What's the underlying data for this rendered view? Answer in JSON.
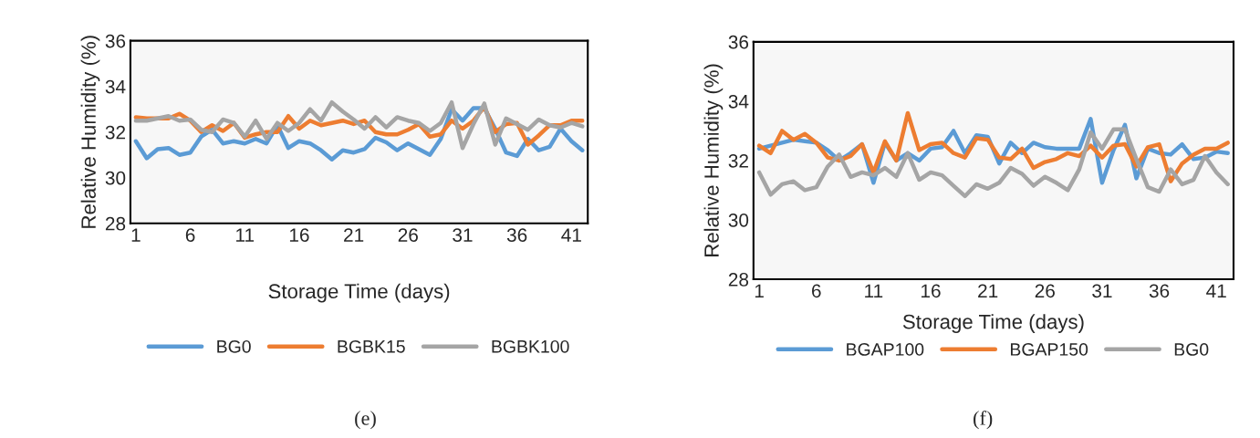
{
  "chart_data": [
    {
      "type": "line",
      "xlabel": "Storage Time (days)",
      "ylabel": "Relative Humidity (%)",
      "categories": [
        "1",
        null,
        null,
        null,
        null,
        "6",
        null,
        null,
        null,
        null,
        "11",
        null,
        null,
        null,
        null,
        "16",
        null,
        null,
        null,
        null,
        "21",
        null,
        null,
        null,
        null,
        "26",
        null,
        null,
        null,
        null,
        "31",
        null,
        null,
        null,
        null,
        "36",
        null,
        null,
        null,
        null,
        "41",
        null
      ],
      "ylim": [
        28,
        36
      ],
      "yticks": [
        28,
        30,
        32,
        34,
        36
      ],
      "grid": false,
      "legend": "bottom",
      "marker": "none",
      "line_style": "solid",
      "annotations": [
        "(e)"
      ],
      "series": [
        {
          "name": "BG0",
          "color": "#5b9bd5",
          "values": [
            31.6,
            30.85,
            31.25,
            31.3,
            31.0,
            31.1,
            31.8,
            32.1,
            31.5,
            31.6,
            31.5,
            31.7,
            31.5,
            32.3,
            31.3,
            31.6,
            31.5,
            31.2,
            30.8,
            31.2,
            31.1,
            31.25,
            31.75,
            31.55,
            31.2,
            31.5,
            31.25,
            31.0,
            31.7,
            33.0,
            32.5,
            33.05,
            33.05,
            32.15,
            31.1,
            30.95,
            31.7,
            31.2,
            31.35,
            32.15,
            31.6,
            31.2
          ]
        },
        {
          "name": "BGBK15",
          "color": "#ed7d31",
          "values": [
            32.65,
            32.6,
            32.6,
            32.6,
            32.8,
            32.5,
            32.0,
            32.3,
            32.05,
            32.4,
            31.75,
            31.9,
            32.0,
            32.0,
            32.7,
            32.15,
            32.5,
            32.3,
            32.4,
            32.5,
            32.35,
            32.5,
            32.0,
            31.9,
            31.9,
            32.1,
            32.35,
            31.8,
            31.9,
            32.5,
            32.15,
            32.5,
            33.1,
            32.0,
            32.35,
            32.4,
            31.45,
            31.85,
            32.3,
            32.3,
            32.5,
            32.5
          ]
        },
        {
          "name": "BGBK100",
          "color": "#a5a5a5",
          "values": [
            32.5,
            32.5,
            32.6,
            32.7,
            32.5,
            32.55,
            32.1,
            32.0,
            32.55,
            32.4,
            31.8,
            32.5,
            31.7,
            32.4,
            32.05,
            32.4,
            33.0,
            32.5,
            33.3,
            32.9,
            32.55,
            32.15,
            32.65,
            32.2,
            32.65,
            32.5,
            32.4,
            32.05,
            32.4,
            33.3,
            31.3,
            32.35,
            33.25,
            31.45,
            32.6,
            32.35,
            32.1,
            32.55,
            32.3,
            32.2,
            32.4,
            32.25
          ]
        }
      ]
    },
    {
      "type": "line",
      "xlabel": "Storage Time (days)",
      "ylabel": "Relative Humidity (%)",
      "categories": [
        "1",
        null,
        null,
        null,
        null,
        "6",
        null,
        null,
        null,
        null,
        "11",
        null,
        null,
        null,
        null,
        "16",
        null,
        null,
        null,
        null,
        "21",
        null,
        null,
        null,
        null,
        "26",
        null,
        null,
        null,
        null,
        "31",
        null,
        null,
        null,
        null,
        "36",
        null,
        null,
        null,
        null,
        "41",
        null
      ],
      "ylim": [
        28,
        36
      ],
      "yticks": [
        28,
        30,
        32,
        34,
        36
      ],
      "grid": false,
      "legend": "bottom",
      "marker": "none",
      "line_style": "solid",
      "annotations": [
        "(f)"
      ],
      "series": [
        {
          "name": "BGAP100",
          "color": "#5b9bd5",
          "values": [
            32.4,
            32.5,
            32.6,
            32.7,
            32.65,
            32.6,
            32.35,
            32.0,
            32.25,
            32.55,
            31.25,
            32.6,
            32.0,
            32.25,
            32.0,
            32.4,
            32.45,
            33.0,
            32.25,
            32.85,
            32.8,
            31.9,
            32.6,
            32.25,
            32.6,
            32.45,
            32.4,
            32.4,
            32.4,
            33.4,
            31.25,
            32.35,
            33.2,
            31.4,
            32.4,
            32.25,
            32.2,
            32.55,
            32.05,
            32.1,
            32.3,
            32.25
          ]
        },
        {
          "name": "BGAP150",
          "color": "#ed7d31",
          "values": [
            32.5,
            32.25,
            33.0,
            32.7,
            32.9,
            32.6,
            32.1,
            32.0,
            32.15,
            32.55,
            31.6,
            32.65,
            32.0,
            33.6,
            32.35,
            32.55,
            32.6,
            32.25,
            32.1,
            32.75,
            32.7,
            32.1,
            32.05,
            32.4,
            31.75,
            31.95,
            32.05,
            32.25,
            32.15,
            32.5,
            32.1,
            32.5,
            32.55,
            31.8,
            32.45,
            32.55,
            31.3,
            31.9,
            32.2,
            32.4,
            32.4,
            32.6
          ]
        },
        {
          "name": "BG0",
          "color": "#a5a5a5",
          "values": [
            31.6,
            30.85,
            31.2,
            31.3,
            31.0,
            31.1,
            31.8,
            32.2,
            31.45,
            31.6,
            31.5,
            31.75,
            31.45,
            32.25,
            31.35,
            31.6,
            31.5,
            31.15,
            30.8,
            31.2,
            31.05,
            31.25,
            31.75,
            31.55,
            31.15,
            31.45,
            31.25,
            31.0,
            31.7,
            32.95,
            32.4,
            33.05,
            33.05,
            32.05,
            31.1,
            30.95,
            31.7,
            31.2,
            31.35,
            32.15,
            31.6,
            31.2
          ]
        }
      ]
    }
  ]
}
